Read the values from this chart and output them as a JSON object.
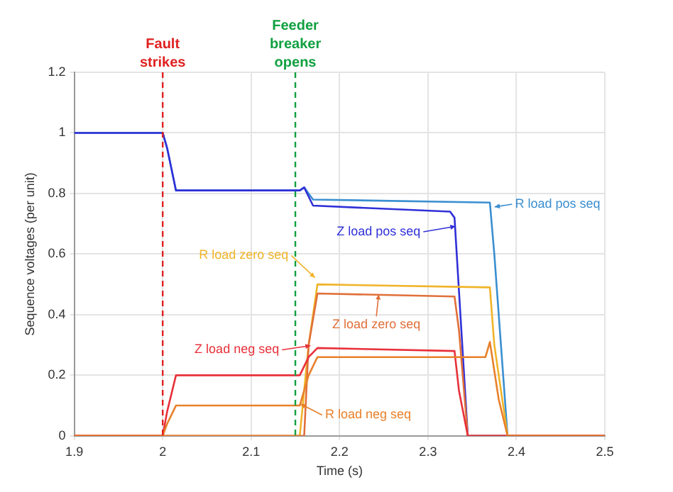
{
  "chart_data": {
    "type": "line",
    "xlabel": "Time (s)",
    "ylabel": "Sequence voltages (per unit)",
    "xlim": [
      1.9,
      2.5
    ],
    "xticks": [
      1.9,
      2,
      2.1,
      2.2,
      2.3,
      2.4,
      2.5
    ],
    "ylim": [
      0,
      1.2
    ],
    "yticks": [
      0,
      0.2,
      0.4,
      0.6,
      0.8,
      1,
      1.2
    ],
    "grid": true,
    "legend": "right",
    "marker": "none",
    "line_style": "solid",
    "series": [
      {
        "name": "R load pos seq",
        "color": "#3a8fd0",
        "x": [
          1.9,
          2.0,
          2.005,
          2.01,
          2.015,
          2.155,
          2.16,
          2.165,
          2.17,
          2.37,
          2.375,
          2.39,
          2.5
        ],
        "values": [
          1,
          1,
          0.95,
          0.88,
          0.81,
          0.81,
          0.82,
          0.8,
          0.78,
          0.77,
          0.6,
          0,
          0
        ]
      },
      {
        "name": "Z load pos seq",
        "color": "#3030d8",
        "x": [
          1.9,
          2.0,
          2.005,
          2.01,
          2.015,
          2.155,
          2.16,
          2.165,
          2.17,
          2.325,
          2.33,
          2.345,
          2.5
        ],
        "values": [
          1,
          1,
          0.95,
          0.88,
          0.81,
          0.81,
          0.82,
          0.79,
          0.76,
          0.74,
          0.72,
          0,
          0
        ]
      },
      {
        "name": "R load zero seq",
        "color": "#f0b429",
        "x": [
          1.9,
          2.155,
          2.165,
          2.175,
          2.37,
          2.375,
          2.39,
          2.5
        ],
        "values": [
          0,
          0,
          0.3,
          0.5,
          0.49,
          0.3,
          0,
          0
        ]
      },
      {
        "name": "Z load zero seq",
        "color": "#e0703a",
        "x": [
          1.9,
          2.16,
          2.165,
          2.175,
          2.33,
          2.335,
          2.345,
          2.5
        ],
        "values": [
          0,
          0,
          0.3,
          0.47,
          0.46,
          0.35,
          0,
          0
        ]
      },
      {
        "name": "Z load neg seq",
        "color": "#e8303a",
        "x": [
          1.9,
          2.0,
          2.005,
          2.015,
          2.155,
          2.165,
          2.175,
          2.33,
          2.335,
          2.345,
          2.5
        ],
        "values": [
          0,
          0,
          0.08,
          0.2,
          0.2,
          0.26,
          0.29,
          0.28,
          0.15,
          0,
          0
        ]
      },
      {
        "name": "R load neg seq",
        "color": "#e8802a",
        "x": [
          1.9,
          2.0,
          2.005,
          2.015,
          2.155,
          2.165,
          2.175,
          2.365,
          2.37,
          2.38,
          2.39,
          2.5
        ],
        "values": [
          0,
          0,
          0.04,
          0.1,
          0.1,
          0.2,
          0.26,
          0.26,
          0.31,
          0.12,
          0,
          0
        ]
      }
    ],
    "ref_lines": [
      {
        "axis": "x",
        "value": 2.0,
        "label": "Fault strikes",
        "color": "#e02020",
        "line_style": "dashed"
      },
      {
        "axis": "x",
        "value": 2.15,
        "label": "Feeder breaker opens",
        "color": "#10a040",
        "line_style": "dashed"
      }
    ]
  }
}
